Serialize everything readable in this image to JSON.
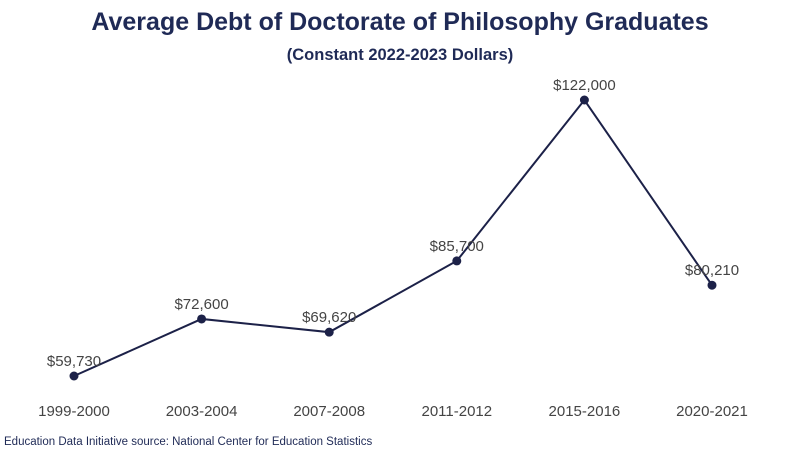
{
  "chart_data": {
    "type": "line",
    "title": "Average Debt of Doctorate of Philosophy Graduates",
    "subtitle": "(Constant 2022-2023 Dollars)",
    "categories": [
      "1999-2000",
      "2003-2004",
      "2007-2008",
      "2011-2012",
      "2015-2016",
      "2020-2021"
    ],
    "series": [
      {
        "values": [
          59730,
          72600,
          69620,
          85700,
          122000,
          80210
        ],
        "labels": [
          "$59,730",
          "$72,600",
          "$69,620",
          "$85,700",
          "$122,000",
          "$80,210"
        ]
      }
    ],
    "ylim": [
      55000,
      124000
    ],
    "grid": false,
    "color": "#1c2148",
    "source": "Education Data Initiative source: National Center for Education Statistics"
  }
}
